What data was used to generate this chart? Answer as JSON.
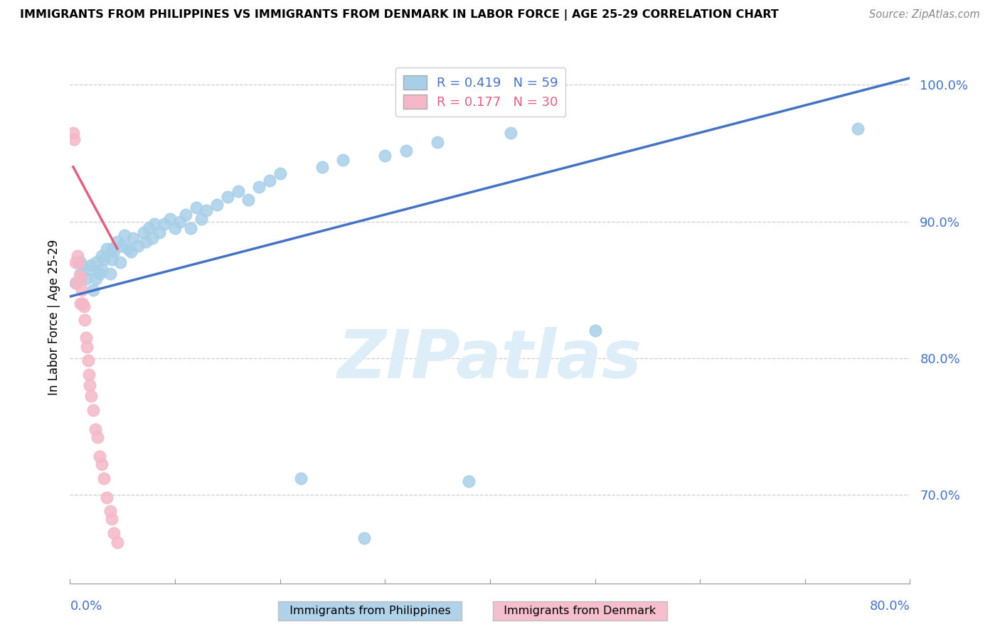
{
  "title": "IMMIGRANTS FROM PHILIPPINES VS IMMIGRANTS FROM DENMARK IN LABOR FORCE | AGE 25-29 CORRELATION CHART",
  "source": "Source: ZipAtlas.com",
  "ylabel": "In Labor Force | Age 25-29",
  "ytick_values": [
    0.7,
    0.8,
    0.9,
    1.0
  ],
  "xlim": [
    0.0,
    0.8
  ],
  "ylim": [
    0.635,
    1.025
  ],
  "R_blue": 0.419,
  "N_blue": 59,
  "R_pink": 0.177,
  "N_pink": 30,
  "legend_blue": "Immigrants from Philippines",
  "legend_pink": "Immigrants from Denmark",
  "blue_color": "#a8cfe8",
  "pink_color": "#f4b8c8",
  "blue_line_color": "#4472c4",
  "pink_line_color": "#e06080",
  "watermark_color": "#ddeef8",
  "blue_x": [
    0.005,
    0.01,
    0.01,
    0.015,
    0.018,
    0.02,
    0.022,
    0.025,
    0.025,
    0.028,
    0.03,
    0.03,
    0.032,
    0.035,
    0.038,
    0.04,
    0.04,
    0.042,
    0.045,
    0.048,
    0.05,
    0.052,
    0.055,
    0.058,
    0.06,
    0.065,
    0.07,
    0.072,
    0.075,
    0.078,
    0.08,
    0.085,
    0.09,
    0.095,
    0.1,
    0.105,
    0.11,
    0.115,
    0.12,
    0.125,
    0.13,
    0.14,
    0.15,
    0.16,
    0.17,
    0.18,
    0.19,
    0.2,
    0.22,
    0.24,
    0.26,
    0.28,
    0.3,
    0.32,
    0.35,
    0.38,
    0.42,
    0.5,
    0.75
  ],
  "blue_y": [
    0.855,
    0.862,
    0.87,
    0.858,
    0.865,
    0.868,
    0.85,
    0.87,
    0.858,
    0.862,
    0.875,
    0.865,
    0.872,
    0.88,
    0.862,
    0.88,
    0.872,
    0.878,
    0.885,
    0.87,
    0.882,
    0.89,
    0.88,
    0.878,
    0.888,
    0.882,
    0.892,
    0.885,
    0.895,
    0.888,
    0.898,
    0.892,
    0.898,
    0.902,
    0.895,
    0.9,
    0.905,
    0.895,
    0.91,
    0.902,
    0.908,
    0.912,
    0.918,
    0.922,
    0.916,
    0.925,
    0.93,
    0.935,
    0.712,
    0.94,
    0.945,
    0.668,
    0.948,
    0.952,
    0.958,
    0.71,
    0.965,
    0.82,
    0.968
  ],
  "pink_x": [
    0.003,
    0.004,
    0.005,
    0.006,
    0.007,
    0.008,
    0.009,
    0.01,
    0.01,
    0.011,
    0.012,
    0.013,
    0.014,
    0.015,
    0.016,
    0.017,
    0.018,
    0.019,
    0.02,
    0.022,
    0.024,
    0.026,
    0.028,
    0.03,
    0.032,
    0.035,
    0.038,
    0.04,
    0.042,
    0.045
  ],
  "pink_y": [
    0.965,
    0.96,
    0.87,
    0.855,
    0.875,
    0.87,
    0.86,
    0.858,
    0.84,
    0.85,
    0.84,
    0.838,
    0.828,
    0.815,
    0.808,
    0.798,
    0.788,
    0.78,
    0.772,
    0.762,
    0.748,
    0.742,
    0.728,
    0.722,
    0.712,
    0.698,
    0.688,
    0.682,
    0.672,
    0.665
  ],
  "blue_trendline_x": [
    0.0,
    0.8
  ],
  "blue_trendline_y": [
    0.845,
    1.005
  ],
  "pink_trendline_x": [
    0.003,
    0.045
  ],
  "pink_trendline_y": [
    0.94,
    0.88
  ]
}
